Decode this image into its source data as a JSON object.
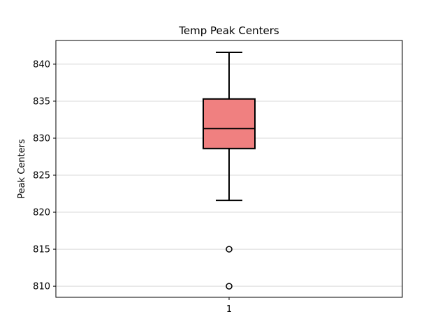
{
  "chart_data": {
    "type": "box",
    "title": "Temp Peak Centers",
    "xlabel": "",
    "ylabel": "Peak Centers",
    "categories": [
      "1"
    ],
    "boxes": [
      {
        "category": "1",
        "whisker_low": 821.6,
        "q1": 828.6,
        "median": 831.3,
        "q3": 835.3,
        "whisker_high": 841.6,
        "outliers": [
          815.0,
          810.0
        ]
      }
    ],
    "ylim": [
      808.5,
      843.2
    ],
    "yticks": [
      810,
      815,
      820,
      825,
      830,
      835,
      840
    ],
    "grid": "y",
    "colors": {
      "box_fill": "#f08080",
      "box_edge": "#000000",
      "grid": "#d9d9d9"
    }
  }
}
